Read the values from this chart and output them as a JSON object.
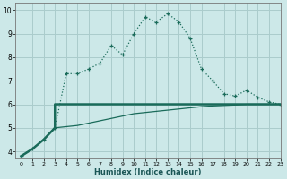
{
  "xlabel": "Humidex (Indice chaleur)",
  "xlim": [
    -0.5,
    23
  ],
  "ylim": [
    3.7,
    10.3
  ],
  "yticks": [
    4,
    5,
    6,
    7,
    8,
    9,
    10
  ],
  "xticks": [
    0,
    1,
    2,
    3,
    4,
    5,
    6,
    7,
    8,
    9,
    10,
    11,
    12,
    13,
    14,
    15,
    16,
    17,
    18,
    19,
    20,
    21,
    22,
    23
  ],
  "bg_color": "#cce8e8",
  "grid_color": "#aacccc",
  "line_color": "#1a6b5a",
  "line1_x": [
    0,
    1,
    2,
    3,
    4,
    5,
    6,
    7,
    8,
    9,
    10,
    11,
    12,
    13,
    14,
    15,
    16,
    17,
    18,
    19,
    20,
    21,
    22,
    23
  ],
  "line1_y": [
    3.8,
    4.1,
    4.5,
    5.0,
    7.3,
    7.3,
    7.5,
    7.75,
    8.5,
    8.1,
    9.0,
    9.7,
    9.5,
    9.85,
    9.5,
    8.8,
    7.5,
    7.0,
    6.45,
    6.35,
    6.6,
    6.3,
    6.1,
    6.0
  ],
  "line2_x": [
    0,
    1,
    2,
    3,
    3,
    23
  ],
  "line2_y": [
    3.8,
    4.1,
    4.5,
    5.0,
    6.0,
    6.0
  ],
  "line3_x": [
    0,
    1,
    2,
    3,
    4,
    5,
    6,
    7,
    8,
    9,
    10,
    11,
    12,
    13,
    14,
    15,
    16,
    17,
    18,
    19,
    20,
    21,
    22,
    23
  ],
  "line3_y": [
    3.8,
    4.1,
    4.5,
    5.0,
    5.05,
    5.1,
    5.2,
    5.3,
    5.4,
    5.5,
    5.6,
    5.65,
    5.7,
    5.75,
    5.8,
    5.85,
    5.9,
    5.93,
    5.95,
    5.97,
    6.0,
    6.0,
    6.0,
    6.0
  ]
}
